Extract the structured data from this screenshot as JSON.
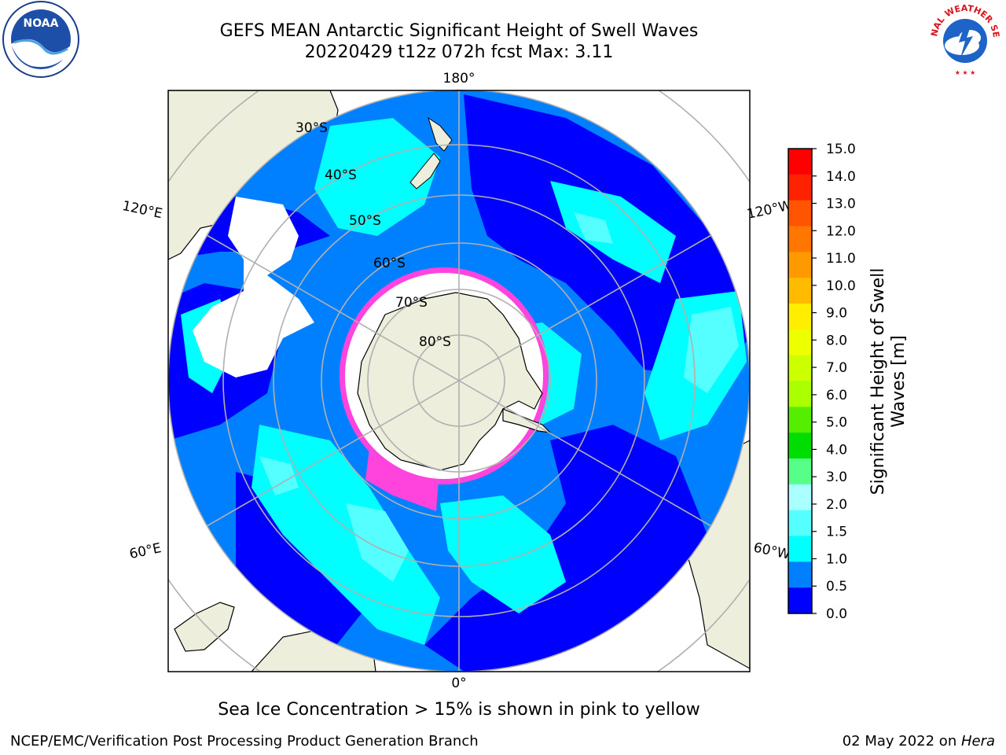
{
  "title": {
    "line1": "GEFS MEAN Antarctic Significant Height of Swell Waves",
    "line2": "20220429 t12z 072h fcst   Max: 3.11"
  },
  "map": {
    "projection": "south-polar-stereographic",
    "meridian_labels": [
      "180°",
      "120°E",
      "120°W",
      "60°E",
      "60°W",
      "0°"
    ],
    "latitude_labels": [
      "30°S",
      "40°S",
      "50°S",
      "60°S",
      "70°S",
      "80°S"
    ],
    "colors": {
      "land": "#eeeedd",
      "ocean_0_0_5": "#0000ff",
      "ocean_0_5_1_0": "#0080ff",
      "ocean_1_0_1_5": "#00ffff",
      "ocean_1_5_2_0": "#55ffff",
      "ocean_2_0_2_5": "#aaffff",
      "sea_ice": "#ff44dd",
      "no_data": "#ffffff",
      "graticule": "#b0b0b0"
    }
  },
  "colorbar": {
    "label_line1": "Significant Height of Swell",
    "label_line2": "Waves [m]",
    "ticks": [
      "15.0",
      "14.0",
      "13.0",
      "12.0",
      "11.0",
      "10.0",
      "9.0",
      "8.0",
      "7.0",
      "6.0",
      "5.0",
      "4.0",
      "3.0",
      "2.0",
      "1.5",
      "1.0",
      "0.5",
      "0.0"
    ],
    "segment_colors": [
      "#ff0000",
      "#ff2200",
      "#ff5500",
      "#ff7700",
      "#ff9900",
      "#ffbb00",
      "#ffee00",
      "#eeff00",
      "#ccff00",
      "#aaff00",
      "#55ee00",
      "#00dd00",
      "#55ff88",
      "#aaffff",
      "#55ffff",
      "#00ffff",
      "#0080ff",
      "#0000ff"
    ]
  },
  "note": "Sea Ice Concentration > 15% is shown in pink to yellow",
  "footer": {
    "left": "NCEP/EMC/Verification Post Processing Product Generation Branch",
    "right_prefix": "02 May 2022 on ",
    "right_machine": "Hera"
  },
  "logos": {
    "noaa_text": "NOAA",
    "nws_text": "NATIONAL WEATHER SERVICE"
  }
}
